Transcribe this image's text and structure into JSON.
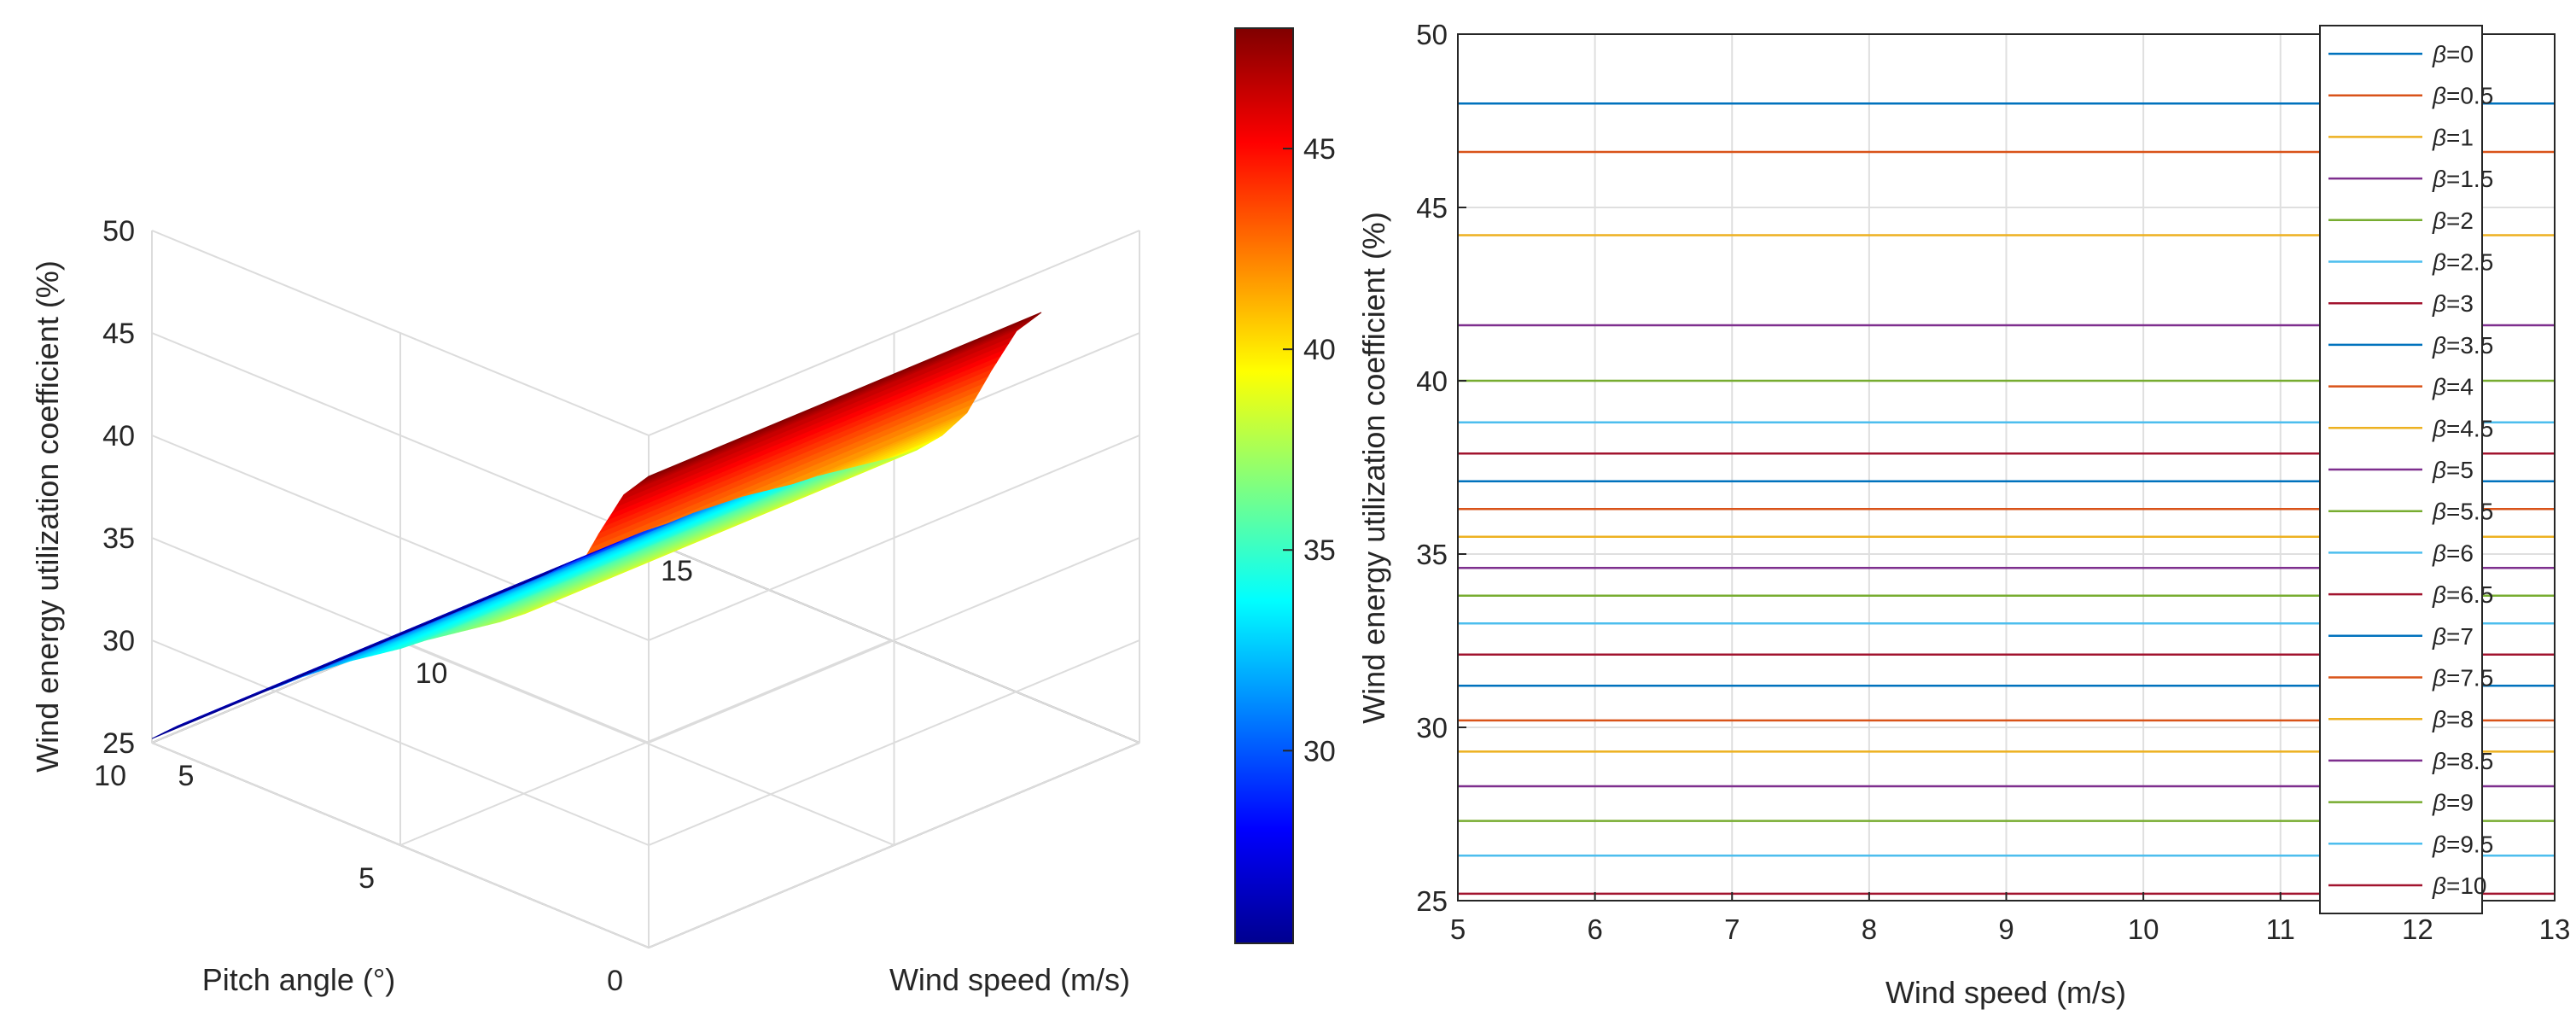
{
  "chart_data": [
    {
      "type": "surface",
      "xlabel": "Wind speed (m/s)",
      "ylabel": "Pitch angle (°)",
      "zlabel": "Wind energy utilization coefficient (%)",
      "x_ticks": [
        "5",
        "10",
        "15"
      ],
      "y_ticks": [
        "0",
        "5",
        "10"
      ],
      "z_ticks": [
        "25",
        "30",
        "35",
        "40",
        "45",
        "50"
      ],
      "xlim": [
        5,
        15
      ],
      "ylim": [
        0,
        10
      ],
      "zlim": [
        25,
        50
      ],
      "x_range_plotted": [
        5,
        13
      ],
      "colormap": "jet",
      "grid": true,
      "colorbar": {
        "ticks": [
          "30",
          "35",
          "40",
          "45"
        ],
        "range": [
          25.2,
          48.0
        ]
      },
      "pitch_angle": [
        0,
        0.5,
        1,
        1.5,
        2,
        2.5,
        3,
        3.5,
        4,
        4.5,
        5,
        5.5,
        6,
        6.5,
        7,
        7.5,
        8,
        8.5,
        9,
        9.5,
        10
      ],
      "coefficient": [
        48.0,
        46.6,
        44.2,
        41.6,
        40.0,
        38.8,
        37.9,
        37.1,
        36.3,
        35.5,
        34.6,
        33.8,
        33.0,
        32.1,
        31.2,
        30.2,
        29.3,
        28.3,
        27.3,
        26.3,
        25.2
      ]
    },
    {
      "type": "line",
      "xlabel": "Wind speed (m/s)",
      "ylabel": "Wind energy utilization coefficient (%)",
      "xlim": [
        5,
        13
      ],
      "ylim": [
        25,
        50
      ],
      "x_ticks": [
        "5",
        "6",
        "7",
        "8",
        "9",
        "10",
        "11",
        "12",
        "13"
      ],
      "y_ticks": [
        "25",
        "30",
        "35",
        "40",
        "45",
        "50"
      ],
      "x": [
        5,
        13
      ],
      "legend_position": "top-right",
      "series": [
        {
          "name": "β=0",
          "values": [
            48.0,
            48.0
          ],
          "color": "#0072bd"
        },
        {
          "name": "β=0.5",
          "values": [
            46.6,
            46.6
          ],
          "color": "#d95319"
        },
        {
          "name": "β=1",
          "values": [
            44.2,
            44.2
          ],
          "color": "#edb120"
        },
        {
          "name": "β=1.5",
          "values": [
            41.6,
            41.6
          ],
          "color": "#7e2f8e"
        },
        {
          "name": "β=2",
          "values": [
            40.0,
            40.0
          ],
          "color": "#77ac30"
        },
        {
          "name": "β=2.5",
          "values": [
            38.8,
            38.8
          ],
          "color": "#4dbeee"
        },
        {
          "name": "β=3",
          "values": [
            37.9,
            37.9
          ],
          "color": "#a2142f"
        },
        {
          "name": "β=3.5",
          "values": [
            37.1,
            37.1
          ],
          "color": "#0072bd"
        },
        {
          "name": "β=4",
          "values": [
            36.3,
            36.3
          ],
          "color": "#d95319"
        },
        {
          "name": "β=4.5",
          "values": [
            35.5,
            35.5
          ],
          "color": "#edb120"
        },
        {
          "name": "β=5",
          "values": [
            34.6,
            34.6
          ],
          "color": "#7e2f8e"
        },
        {
          "name": "β=5.5",
          "values": [
            33.8,
            33.8
          ],
          "color": "#77ac30"
        },
        {
          "name": "β=6",
          "values": [
            33.0,
            33.0
          ],
          "color": "#4dbeee"
        },
        {
          "name": "β=6.5",
          "values": [
            32.1,
            32.1
          ],
          "color": "#a2142f"
        },
        {
          "name": "β=7",
          "values": [
            31.2,
            31.2
          ],
          "color": "#0072bd"
        },
        {
          "name": "β=7.5",
          "values": [
            30.2,
            30.2
          ],
          "color": "#d95319"
        },
        {
          "name": "β=8",
          "values": [
            29.3,
            29.3
          ],
          "color": "#edb120"
        },
        {
          "name": "β=8.5",
          "values": [
            28.3,
            28.3
          ],
          "color": "#7e2f8e"
        },
        {
          "name": "β=9",
          "values": [
            27.3,
            27.3
          ],
          "color": "#77ac30"
        },
        {
          "name": "β=9.5",
          "values": [
            26.3,
            26.3
          ],
          "color": "#4dbeee"
        },
        {
          "name": "β=10",
          "values": [
            25.2,
            25.2
          ],
          "color": "#a2142f"
        }
      ]
    }
  ]
}
